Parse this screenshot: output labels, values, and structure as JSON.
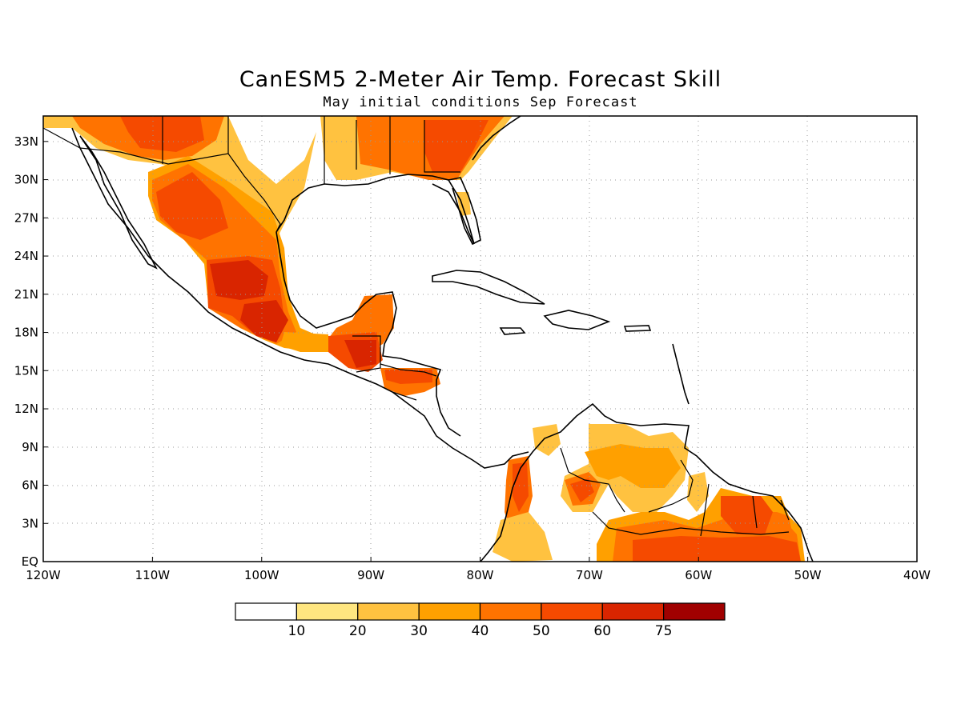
{
  "title": "CanESM5 2-Meter Air Temp. Forecast Skill",
  "subtitle": "May initial conditions  Sep Forecast",
  "map": {
    "lon_range": [
      -120,
      -40
    ],
    "lat_range": [
      0,
      35
    ],
    "lon_ticks": [
      "120W",
      "110W",
      "100W",
      "90W",
      "80W",
      "70W",
      "60W",
      "50W",
      "40W"
    ],
    "lat_ticks": [
      "EQ",
      "3N",
      "6N",
      "9N",
      "12N",
      "15N",
      "18N",
      "21N",
      "24N",
      "27N",
      "30N",
      "33N"
    ],
    "gridlines": "dotted"
  },
  "legend": {
    "labels": [
      "10",
      "20",
      "30",
      "40",
      "50",
      "60",
      "75"
    ],
    "colors": [
      "#ffffff",
      "#ffe680",
      "#ffc240",
      "#ffa000",
      "#ff7300",
      "#f54a00",
      "#d92500",
      "#a00000"
    ]
  },
  "chart_data": {
    "type": "heatmap",
    "title": "CanESM5 2-Meter Air Temp. Forecast Skill",
    "subtitle": "May initial conditions  Sep Forecast",
    "xlabel": "",
    "ylabel": "",
    "xlim": [
      -120,
      -40
    ],
    "ylim": [
      0,
      35
    ],
    "color_levels": [
      10,
      20,
      30,
      40,
      50,
      60,
      75
    ],
    "regions": [
      {
        "lon": -107,
        "lat": 27,
        "level": 60
      },
      {
        "lon": -102,
        "lat": 22,
        "level": 60
      },
      {
        "lon": -100,
        "lat": 19,
        "level": 75
      },
      {
        "lon": -91,
        "lat": 16,
        "level": 60
      },
      {
        "lon": -86,
        "lat": 15,
        "level": 50
      },
      {
        "lon": -84,
        "lat": 32,
        "level": 50
      },
      {
        "lon": -71,
        "lat": 6,
        "level": 50
      },
      {
        "lon": -60,
        "lat": 1.5,
        "level": 50
      },
      {
        "lon": -52,
        "lat": 3,
        "level": 40
      },
      {
        "lon": -66,
        "lat": 7,
        "level": 20
      }
    ]
  }
}
